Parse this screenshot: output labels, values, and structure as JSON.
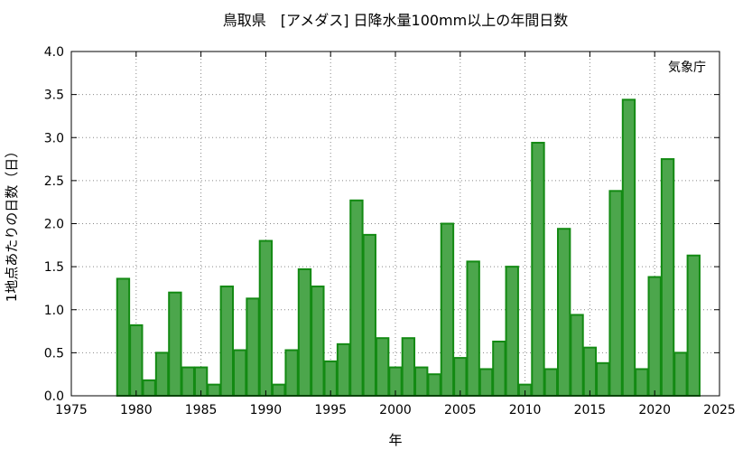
{
  "chart_data": {
    "type": "bar",
    "title": "鳥取県　[アメダス] 日降水量100mm以上の年間日数",
    "xlabel": "年",
    "ylabel": "1地点あたりの日数（日）",
    "source": "気象庁",
    "xlim": [
      1975,
      2025
    ],
    "ylim": [
      0,
      4.0
    ],
    "xticks": [
      "1975",
      "1980",
      "1985",
      "1990",
      "1995",
      "2000",
      "2005",
      "2010",
      "2015",
      "2020",
      "2025"
    ],
    "yticks": [
      "0.0",
      "0.5",
      "1.0",
      "1.5",
      "2.0",
      "2.5",
      "3.0",
      "3.5",
      "4.0"
    ],
    "grid": true,
    "bar_color": "#4ca64c",
    "bar_edge_color": "#138a13",
    "x": [
      1979,
      1980,
      1981,
      1982,
      1983,
      1984,
      1985,
      1986,
      1987,
      1988,
      1989,
      1990,
      1991,
      1992,
      1993,
      1994,
      1995,
      1996,
      1997,
      1998,
      1999,
      2000,
      2001,
      2002,
      2003,
      2004,
      2005,
      2006,
      2007,
      2008,
      2009,
      2010,
      2011,
      2012,
      2013,
      2014,
      2015,
      2016,
      2017,
      2018,
      2019,
      2020,
      2021,
      2022,
      2023
    ],
    "values": [
      1.36,
      0.82,
      0.18,
      0.5,
      1.2,
      0.33,
      0.33,
      0.13,
      1.27,
      0.53,
      1.13,
      1.8,
      0.13,
      0.53,
      1.47,
      1.27,
      0.4,
      0.6,
      2.27,
      1.87,
      0.67,
      0.33,
      0.67,
      0.33,
      0.25,
      2.0,
      0.44,
      1.56,
      0.31,
      0.63,
      1.5,
      0.13,
      2.94,
      0.31,
      1.94,
      0.94,
      0.56,
      0.38,
      2.38,
      3.44,
      0.31,
      1.38,
      2.75,
      0.5,
      1.63
    ]
  }
}
